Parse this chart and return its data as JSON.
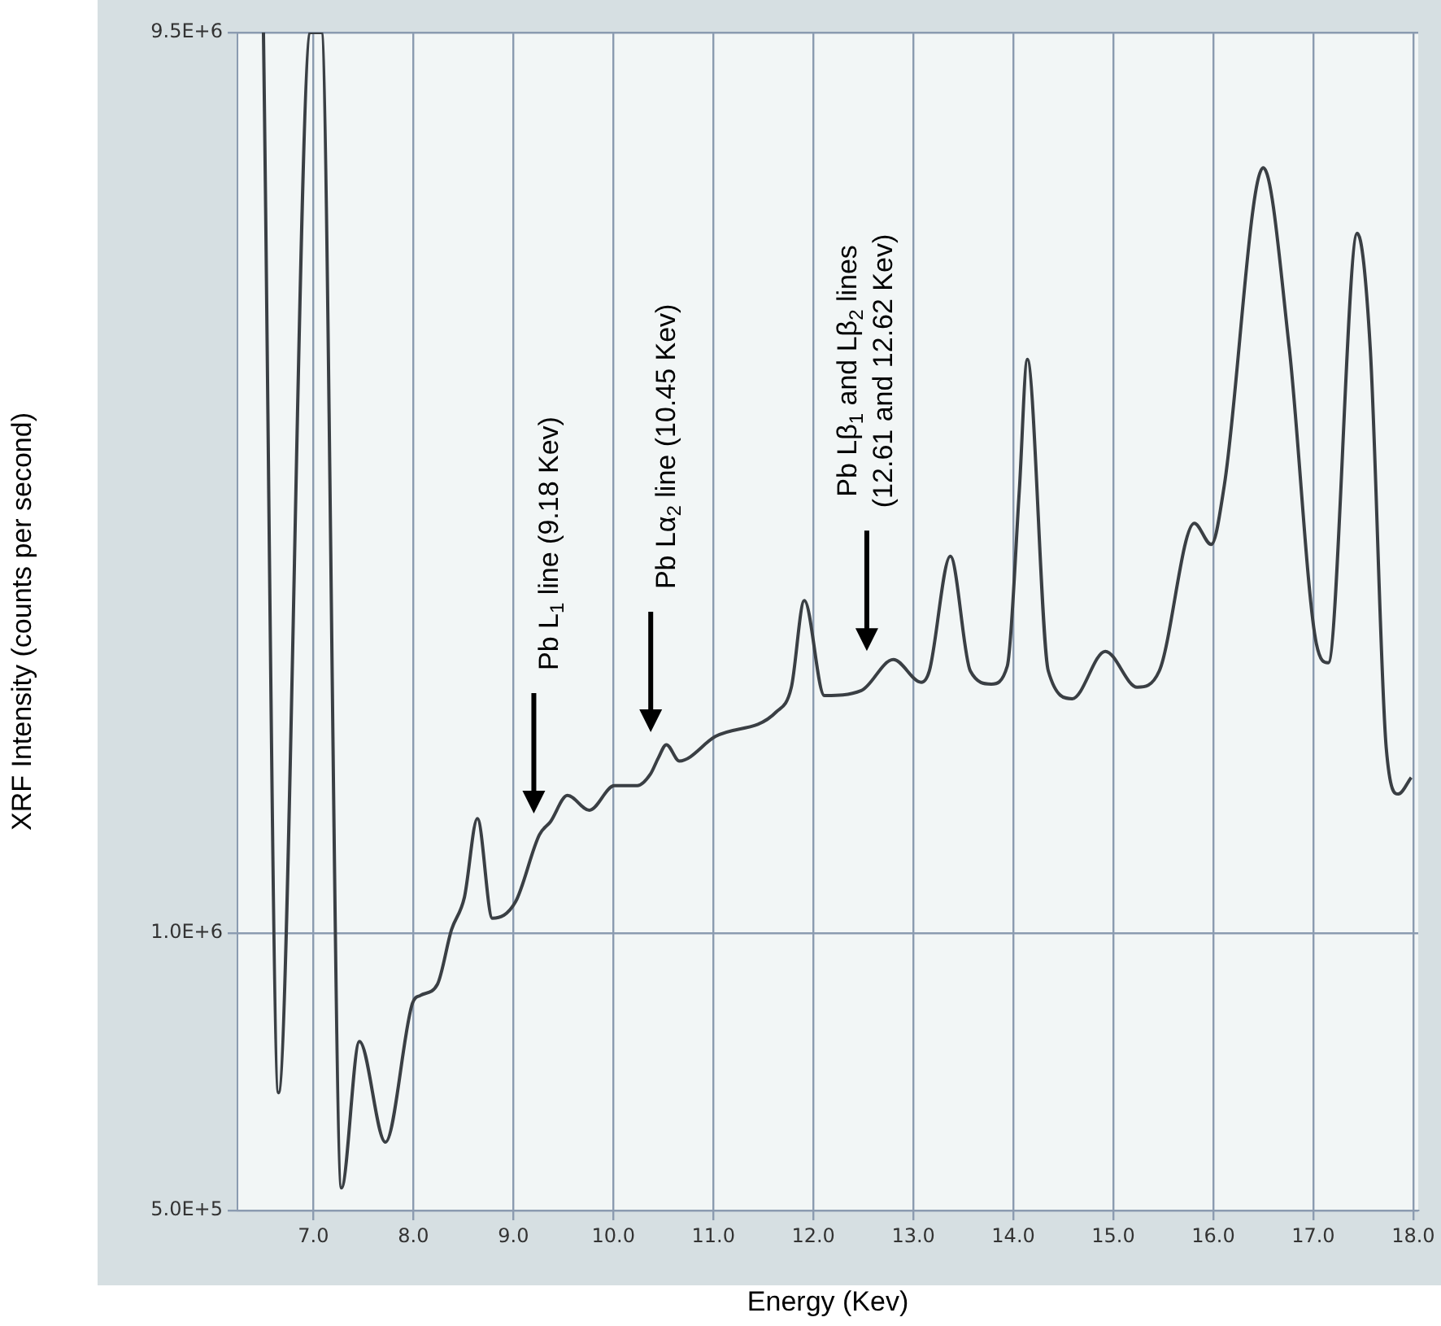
{
  "chart_data": {
    "type": "line",
    "xlabel": "Energy (Kev)",
    "ylabel": "XRF Intensity (counts per second)",
    "color": "#3a3f44",
    "marker": "none",
    "log": "y",
    "grid": true,
    "xlim": [
      6.24,
      18.05
    ],
    "ylim": [
      500000,
      9500000
    ],
    "xticks": [
      {
        "value": 7,
        "label": "7.0"
      },
      {
        "value": 8,
        "label": "8.0"
      },
      {
        "value": 9,
        "label": "9.0"
      },
      {
        "value": 10,
        "label": "10.0"
      },
      {
        "value": 11,
        "label": "11.0"
      },
      {
        "value": 12,
        "label": "12.0"
      },
      {
        "value": 13,
        "label": "13.0"
      },
      {
        "value": 14,
        "label": "14.0"
      },
      {
        "value": 15,
        "label": "15.0"
      },
      {
        "value": 16,
        "label": "16.0"
      },
      {
        "value": 17,
        "label": "17.0"
      },
      {
        "value": 18,
        "label": "18.0"
      }
    ],
    "yticks": [
      {
        "value": 500000,
        "label": "5.0E+5"
      },
      {
        "value": 1000000,
        "label": "1.0E+6"
      },
      {
        "value": 9500000,
        "label": "9.5E+6"
      }
    ],
    "x": [
      6.5,
      6.65,
      6.97,
      7.08,
      7.28,
      7.46,
      7.72,
      7.99,
      8.07,
      8.24,
      8.38,
      8.51,
      8.64,
      8.79,
      9.02,
      9.26,
      9.37,
      9.54,
      9.76,
      10.01,
      10.24,
      10.37,
      10.45,
      10.53,
      10.66,
      11.02,
      11.63,
      11.78,
      11.91,
      12.11,
      12.48,
      12.8,
      13.08,
      13.16,
      13.37,
      13.57,
      13.78,
      13.94,
      14.06,
      14.14,
      14.35,
      14.59,
      14.92,
      15.24,
      15.46,
      15.81,
      15.98,
      16.11,
      16.5,
      16.76,
      17.03,
      17.15,
      17.44,
      17.57,
      17.73,
      17.85,
      17.98
    ],
    "values": [
      9500000,
      671000,
      9500000,
      9500000,
      529000,
      763000,
      593000,
      839000,
      856000,
      880000,
      1008000,
      1094000,
      1332000,
      1038000,
      1081000,
      1279000,
      1321000,
      1411000,
      1360000,
      1446000,
      1446000,
      1488000,
      1550000,
      1602000,
      1538000,
      1635000,
      1739000,
      1849000,
      2297000,
      1811000,
      1834000,
      1982000,
      1872000,
      1926000,
      2566000,
      1926000,
      1864000,
      1950000,
      3023000,
      4196000,
      1926000,
      1797000,
      2023000,
      1849000,
      1926000,
      2786000,
      2642000,
      3061000,
      6776000,
      4318000,
      2065000,
      1966000,
      5752000,
      4318000,
      1589000,
      1416000,
      1476000
    ],
    "annotations": [
      "Pb L$_{1}$ line (9.18 Kev)",
      "Pb Lα$_{2}$ line (10.45 Kev)",
      "Pb Lβ$_{1}$ and Lβ$_{2}$ lines\n(12.61 and 12.62 Kev)"
    ]
  }
}
